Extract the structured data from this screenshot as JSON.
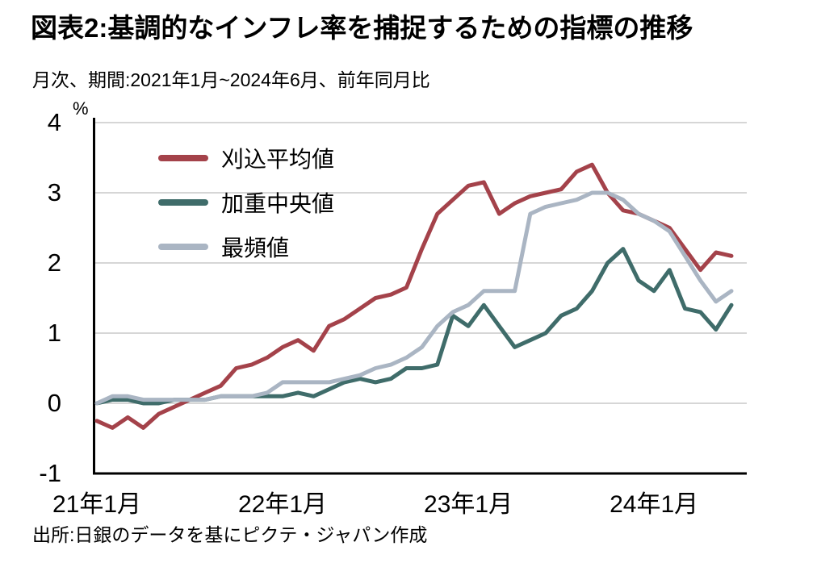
{
  "title": "図表2:基調的なインフレ率を捕捉するための指標の推移",
  "subtitle": "月次、期間:2021年1月~2024年6月、前年同月比",
  "source": "出所:日銀のデータを基にピクテ・ジャパン作成",
  "chart_data": {
    "type": "line",
    "title": "図表2:基調的なインフレ率を捕捉するための指標の推移",
    "subtitle": "月次、期間:2021年1月~2024年6月、前年同月比",
    "unit_label": "%",
    "ylim": [
      -1,
      4
    ],
    "yticks": [
      4,
      3,
      2,
      1,
      0,
      -1
    ],
    "grid": "horizontal",
    "legend_position": "top-left-inside",
    "x_start": "2021-01",
    "x_end": "2024-06",
    "x_ticks": [
      {
        "label": "21年1月",
        "month_index": 0
      },
      {
        "label": "22年1月",
        "month_index": 12
      },
      {
        "label": "23年1月",
        "month_index": 24
      },
      {
        "label": "24年1月",
        "month_index": 36
      }
    ],
    "series": [
      {
        "key": "trimmed-mean",
        "name": "刈込平均値",
        "color": "#a4424a",
        "values": [
          -0.25,
          -0.35,
          -0.2,
          -0.35,
          -0.15,
          -0.05,
          0.05,
          0.15,
          0.25,
          0.5,
          0.55,
          0.65,
          0.8,
          0.9,
          0.75,
          1.1,
          1.2,
          1.35,
          1.5,
          1.55,
          1.65,
          2.2,
          2.7,
          2.9,
          3.1,
          3.15,
          2.7,
          2.85,
          2.95,
          3.0,
          3.05,
          3.3,
          3.4,
          3.0,
          2.75,
          2.7,
          2.6,
          2.5,
          2.2,
          1.9,
          2.15,
          2.1
        ]
      },
      {
        "key": "weighted-median",
        "name": "加重中央値",
        "color": "#3f6c6a",
        "values": [
          0.0,
          0.05,
          0.05,
          0.0,
          0.0,
          0.05,
          0.05,
          0.05,
          0.1,
          0.1,
          0.1,
          0.1,
          0.1,
          0.15,
          0.1,
          0.2,
          0.3,
          0.35,
          0.3,
          0.35,
          0.5,
          0.5,
          0.55,
          1.25,
          1.1,
          1.4,
          1.1,
          0.8,
          0.9,
          1.0,
          1.25,
          1.35,
          1.6,
          2.0,
          2.2,
          1.75,
          1.6,
          1.9,
          1.35,
          1.3,
          1.05,
          1.4
        ]
      },
      {
        "key": "mode",
        "name": "最頻値",
        "color": "#aab5c3",
        "values": [
          0.0,
          0.1,
          0.1,
          0.05,
          0.05,
          0.05,
          0.05,
          0.05,
          0.1,
          0.1,
          0.1,
          0.15,
          0.3,
          0.3,
          0.3,
          0.3,
          0.35,
          0.4,
          0.5,
          0.55,
          0.65,
          0.8,
          1.1,
          1.3,
          1.4,
          1.6,
          1.6,
          1.6,
          2.7,
          2.8,
          2.85,
          2.9,
          3.0,
          3.0,
          2.9,
          2.7,
          2.6,
          2.45,
          2.1,
          1.75,
          1.45,
          1.6
        ]
      }
    ],
    "style": {
      "grid_color": "#c9c9c9",
      "axis_color": "#000000",
      "line_width": 5
    }
  }
}
